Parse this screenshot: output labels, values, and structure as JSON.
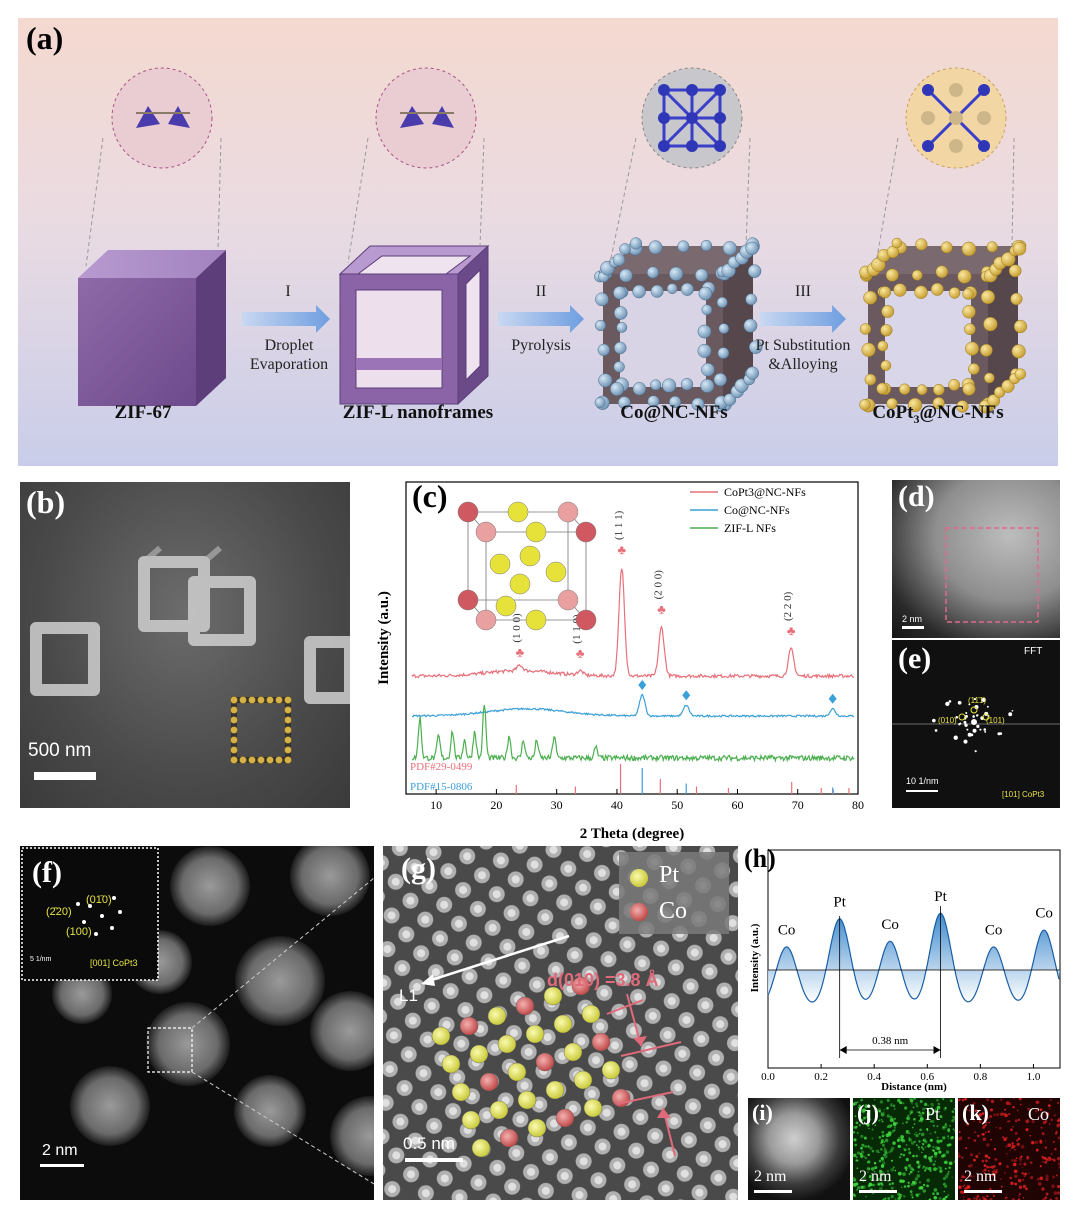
{
  "panel_a": {
    "label": "(a)",
    "stages": [
      "ZIF-67",
      "ZIF-L nanoframes",
      "Co@NC-NFs",
      "CoPt3@NC-NFs"
    ],
    "steps": [
      {
        "roman": "I",
        "text1": "Droplet",
        "text2": "Evaporation"
      },
      {
        "roman": "II",
        "text1": "Pyrolysis",
        "text2": ""
      },
      {
        "roman": "III",
        "text1": "Pt Substitution",
        "text2": "&Alloying"
      }
    ]
  },
  "panel_b": {
    "label": "(b)",
    "scale": "500 nm"
  },
  "panel_c": {
    "label": "(c)"
  },
  "panel_d": {
    "label": "(d)",
    "scale": "2 nm"
  },
  "panel_e": {
    "label": "(e)",
    "fft": "FFT",
    "scale": "10 1/nm",
    "zone": "[101] CoPt3",
    "spots": [
      "(11̄1̄)",
      "(010)",
      "(101)"
    ]
  },
  "panel_f": {
    "label": "(f)",
    "scale": "2 nm",
    "inset_scale": "5 1/nm",
    "inset_zone": "[001] CoPt3",
    "spots": [
      "(01̄0)",
      "(2̄20)",
      "(100)"
    ]
  },
  "panel_g": {
    "label": "(g)",
    "legend_pt": "Pt",
    "legend_co": "Co",
    "line_label": "L1",
    "d_label": "d(010) =3.8 Å",
    "scale": "0.5 nm"
  },
  "panel_h": {
    "label": "(h)",
    "distance_label": "0.38 nm"
  },
  "panel_i": {
    "label": "(i)",
    "scale": "2 nm"
  },
  "panel_j": {
    "label": "(j)",
    "element": "Pt",
    "scale": "2 nm"
  },
  "panel_k": {
    "label": "(k)",
    "element": "Co",
    "scale": "2 nm"
  },
  "chart_data": [
    {
      "type": "line",
      "panel": "c",
      "xlabel": "2 Theta (degree)",
      "ylabel": "Intensity (a.u.)",
      "xlim": [
        5,
        80
      ],
      "xticks": [
        10,
        20,
        30,
        40,
        50,
        60,
        70,
        80
      ],
      "legend": [
        "CoPt3@NC-NFs",
        "Co@NC-NFs",
        "ZIF-L NFs"
      ],
      "legend_position": "top-right",
      "series": [
        {
          "name": "CoPt3@NC-NFs",
          "color": "#e8707a",
          "peaks": [
            [
              23.9,
              0.05
            ],
            [
              33.9,
              0.04
            ],
            [
              40.8,
              1.0
            ],
            [
              47.4,
              0.45
            ],
            [
              68.9,
              0.25
            ]
          ]
        },
        {
          "name": "Co@NC-NFs",
          "color": "#3aa0d8",
          "peaks": [
            [
              44.2,
              0.35
            ],
            [
              51.5,
              0.18
            ],
            [
              75.8,
              0.12
            ]
          ]
        },
        {
          "name": "ZIF-L NFs",
          "color": "#4caf50",
          "peaks": [
            [
              7.3,
              0.45
            ],
            [
              10.4,
              0.25
            ],
            [
              12.7,
              0.3
            ],
            [
              14.7,
              0.2
            ],
            [
              16.4,
              0.3
            ],
            [
              18.0,
              0.6
            ],
            [
              22.1,
              0.25
            ],
            [
              24.5,
              0.2
            ],
            [
              26.7,
              0.2
            ],
            [
              29.6,
              0.25
            ],
            [
              36.5,
              0.12
            ]
          ]
        }
      ],
      "peak_labels": [
        {
          "x": 23.9,
          "label": "(1 0 0)"
        },
        {
          "x": 33.9,
          "label": "(1 1 0)"
        },
        {
          "x": 40.8,
          "label": "(1 1 1)"
        },
        {
          "x": 47.4,
          "label": "(2 0 0)"
        },
        {
          "x": 68.9,
          "label": "(2 2 0)"
        }
      ],
      "references": [
        {
          "name": "PDF#29-0499",
          "color": "#e8707a",
          "lines": [
            [
              23.3,
              0.3
            ],
            [
              33.1,
              0.25
            ],
            [
              40.6,
              1.0
            ],
            [
              47.2,
              0.5
            ],
            [
              53.2,
              0.25
            ],
            [
              58.5,
              0.2
            ],
            [
              69.0,
              0.4
            ],
            [
              73.9,
              0.2
            ],
            [
              75.9,
              0.15
            ],
            [
              78.5,
              0.2
            ]
          ]
        },
        {
          "name": "PDF#15-0806",
          "color": "#3aa0d8",
          "lines": [
            [
              44.2,
              1.0
            ],
            [
              51.5,
              0.4
            ],
            [
              75.8,
              0.25
            ]
          ]
        }
      ]
    },
    {
      "type": "line",
      "panel": "h",
      "xlabel": "Distance (nm)",
      "ylabel": "Intensity (a.u.)",
      "xlim": [
        0,
        1.1
      ],
      "xticks": [
        0.0,
        0.2,
        0.4,
        0.6,
        0.8,
        1.0
      ],
      "xtick_labels": [
        "0.0",
        "0.2",
        "0.4",
        "0.6",
        "0.8",
        "1.0"
      ],
      "peak_labels": [
        {
          "x": 0.07,
          "label": "Co"
        },
        {
          "x": 0.27,
          "label": "Pt"
        },
        {
          "x": 0.46,
          "label": "Co"
        },
        {
          "x": 0.65,
          "label": "Pt"
        },
        {
          "x": 0.85,
          "label": "Co"
        },
        {
          "x": 1.04,
          "label": "Co"
        }
      ],
      "peak_heights": [
        0.55,
        0.8,
        0.6,
        0.85,
        0.55,
        0.7
      ],
      "marked_interval": [
        0.27,
        0.65
      ]
    }
  ]
}
